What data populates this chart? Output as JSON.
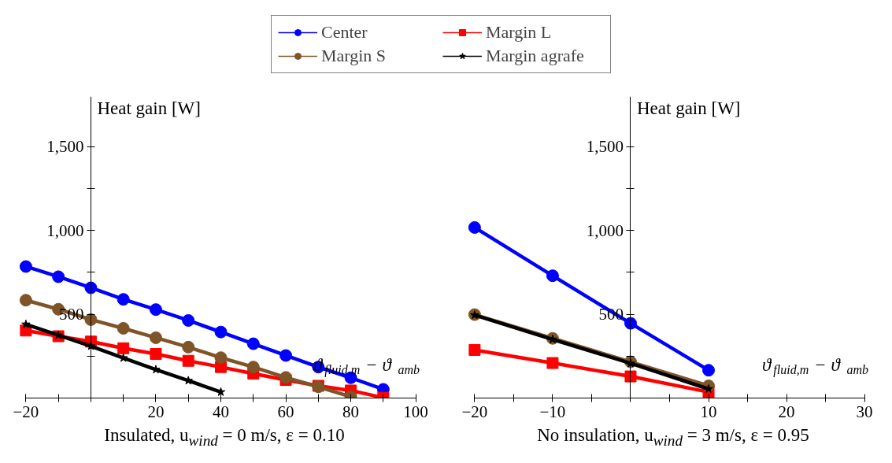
{
  "chart_data": [
    {
      "type": "line",
      "title": "Insulated, u$_{wind}$ = 0 m/s, ε = 0.10",
      "xlabel": "ϑ$_{fluid,m}$ − ϑ$_{amb}$",
      "ylabel": "Heat gain [W]",
      "xlim": [
        -20,
        100
      ],
      "ylim": [
        0,
        1800
      ],
      "xticks": [
        {
          "value": -20,
          "label": "−20"
        },
        {
          "value": -10,
          "label": null
        },
        {
          "value": 0,
          "label": null
        },
        {
          "value": 10,
          "label": null
        },
        20,
        {
          "value": 30,
          "label": null
        },
        40,
        {
          "value": 50,
          "label": null
        },
        60,
        {
          "value": 70,
          "label": null
        },
        80,
        {
          "value": 90,
          "label": null
        },
        100
      ],
      "yticks": [
        {
          "value": 250,
          "label": null
        },
        500,
        {
          "value": 750,
          "label": null
        },
        {
          "value": 1000,
          "label": "1,000"
        },
        {
          "value": 1250,
          "label": null
        },
        {
          "value": 1500,
          "label": "1,500"
        }
      ],
      "grid": false,
      "legend": "top",
      "series": [
        {
          "name": "Center",
          "color": "#0000ff",
          "marker": "circle",
          "x": [
            -20,
            -10,
            0,
            10,
            20,
            30,
            40,
            50,
            60,
            70,
            80,
            90
          ],
          "values": [
            785,
            724,
            658,
            589,
            528,
            463,
            394,
            324,
            254,
            185,
            121,
            52
          ]
        },
        {
          "name": "Margin L",
          "color": "#ff0000",
          "marker": "square",
          "x": [
            -20,
            -10,
            0,
            10,
            20,
            30,
            40,
            50,
            60,
            70,
            80,
            90
          ],
          "values": [
            403,
            369,
            337,
            297,
            263,
            222,
            185,
            146,
            108,
            73,
            45,
            2
          ]
        },
        {
          "name": "Margin S",
          "color": "#7f5427",
          "marker": "circle",
          "x": [
            -20,
            -10,
            0,
            10,
            20,
            30,
            40,
            50,
            60,
            70,
            80
          ],
          "values": [
            584,
            530,
            468,
            416,
            360,
            304,
            241,
            185,
            123,
            67,
            8
          ]
        },
        {
          "name": "Margin agrafe",
          "color": "#000000",
          "marker": "star",
          "x": [
            -20,
            -10,
            0,
            10,
            20,
            30,
            40
          ],
          "values": [
            440,
            375,
            310,
            239,
            170,
            104,
            36
          ]
        }
      ]
    },
    {
      "type": "line",
      "title": "No insulation, u$_{wind}$ = 3 m/s, ε = 0.95",
      "xlabel": "ϑ$_{fluid,m}$ − ϑ$_{amb}$",
      "ylabel": "Heat gain [W]",
      "xlim": [
        -20,
        30
      ],
      "ylim": [
        0,
        1800
      ],
      "xticks": [
        {
          "value": -20,
          "label": "−20"
        },
        {
          "value": -15,
          "label": null
        },
        {
          "value": -10,
          "label": "−10"
        },
        {
          "value": -5,
          "label": null
        },
        {
          "value": 0,
          "label": null
        },
        {
          "value": 5,
          "label": null
        },
        10,
        {
          "value": 15,
          "label": null
        },
        20,
        {
          "value": 25,
          "label": null
        },
        30
      ],
      "yticks": [
        {
          "value": 250,
          "label": null
        },
        500,
        {
          "value": 750,
          "label": null
        },
        {
          "value": 1000,
          "label": "1,000"
        },
        {
          "value": 1250,
          "label": null
        },
        {
          "value": 1500,
          "label": "1,500"
        }
      ],
      "grid": false,
      "legend": false,
      "series": [
        {
          "color": "#0000ff",
          "marker": "circle",
          "x": [
            -20,
            -10,
            0,
            10
          ],
          "values": [
            1018,
            730,
            446,
            166
          ]
        },
        {
          "color": "#ff0000",
          "marker": "square",
          "x": [
            -20,
            -10,
            0,
            10
          ],
          "values": [
            287,
            209,
            129,
            36
          ]
        },
        {
          "color": "#7f5427",
          "marker": "circle",
          "x": [
            -20,
            -10,
            0,
            10
          ],
          "values": [
            498,
            356,
            216,
            73
          ]
        },
        {
          "color": "#000000",
          "marker": "star",
          "x": [
            -20,
            -10,
            0,
            10
          ],
          "values": [
            495,
            350,
            207,
            54
          ]
        }
      ]
    }
  ]
}
